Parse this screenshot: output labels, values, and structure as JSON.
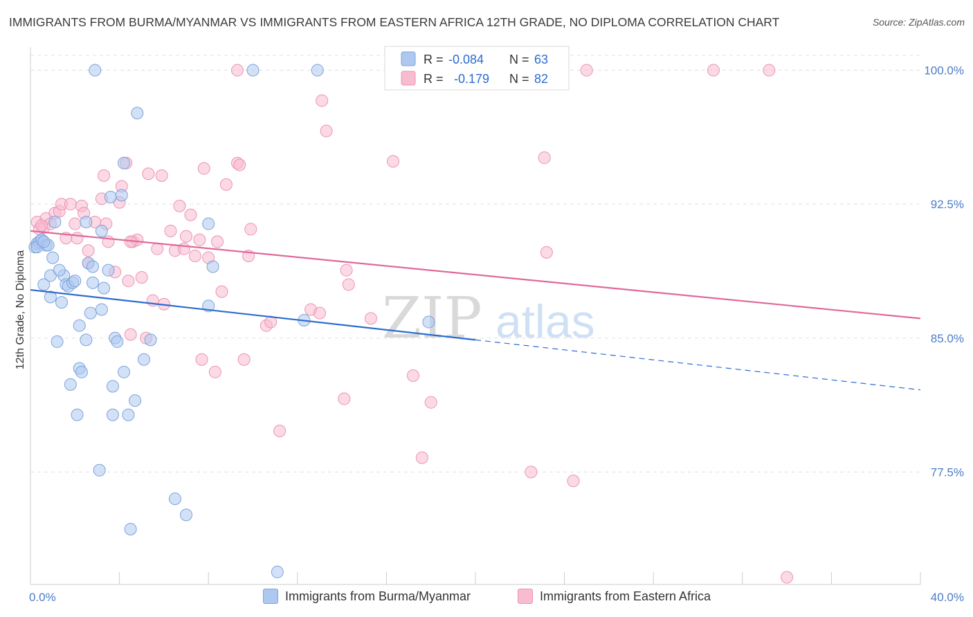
{
  "title": "IMMIGRANTS FROM BURMA/MYANMAR VS IMMIGRANTS FROM EASTERN AFRICA 12TH GRADE, NO DIPLOMA CORRELATION CHART",
  "source": "Source: ZipAtlas.com",
  "watermark": {
    "zip": "ZIP",
    "atlas": "atlas"
  },
  "colors": {
    "blue_fill": "#aec9f0",
    "blue_stroke": "#7aa3dd",
    "blue_line": "#2a6bd1",
    "pink_fill": "#f7bcd0",
    "pink_stroke": "#ec93b2",
    "pink_line": "#e0689a",
    "axis_text": "#4a7cc7",
    "grid": "#e0e0e0"
  },
  "legend": {
    "r_label": "R =",
    "n_label": "N =",
    "blue": {
      "r": "-0.084",
      "n": "63"
    },
    "pink": {
      "r": "-0.179",
      "n": "82"
    }
  },
  "chart_data": {
    "type": "scatter",
    "title": "IMMIGRANTS FROM BURMA/MYANMAR VS IMMIGRANTS FROM EASTERN AFRICA 12TH GRADE, NO DIPLOMA CORRELATION CHART",
    "xlabel": "",
    "ylabel": "12th Grade, No Diploma",
    "xlim": [
      0,
      40
    ],
    "ylim": [
      71.2,
      101.3
    ],
    "x_tick_labels": [
      "0.0%",
      "40.0%"
    ],
    "y_ticks": [
      77.5,
      85.0,
      92.5,
      100.0
    ],
    "y_tick_labels": [
      "77.5%",
      "85.0%",
      "92.5%",
      "100.0%"
    ],
    "grid": true,
    "series": [
      {
        "name": "Immigrants from Burma/Myanmar",
        "color": "#aec9f0",
        "trend": {
          "x": [
            0,
            20
          ],
          "y": [
            87.7,
            84.9
          ],
          "dashed_to": [
            40,
            82.1
          ]
        },
        "points": [
          [
            0.2,
            90.1
          ],
          [
            0.3,
            90.3
          ],
          [
            0.4,
            90.4
          ],
          [
            0.5,
            90.5
          ],
          [
            0.7,
            90.2
          ],
          [
            0.6,
            88.0
          ],
          [
            0.9,
            88.5
          ],
          [
            0.9,
            87.3
          ],
          [
            1.0,
            89.5
          ],
          [
            1.1,
            91.5
          ],
          [
            1.4,
            87.0
          ],
          [
            1.5,
            88.5
          ],
          [
            1.6,
            88.0
          ],
          [
            1.7,
            87.9
          ],
          [
            1.9,
            88.1
          ],
          [
            1.2,
            84.8
          ],
          [
            2.2,
            85.7
          ],
          [
            2.5,
            84.9
          ],
          [
            2.2,
            83.3
          ],
          [
            2.3,
            83.1
          ],
          [
            1.8,
            82.4
          ],
          [
            2.1,
            80.7
          ],
          [
            2.5,
            91.5
          ],
          [
            2.6,
            89.2
          ],
          [
            2.8,
            89.0
          ],
          [
            2.8,
            88.1
          ],
          [
            3.3,
            87.8
          ],
          [
            2.7,
            86.4
          ],
          [
            3.2,
            86.6
          ],
          [
            3.6,
            92.9
          ],
          [
            3.2,
            91.0
          ],
          [
            4.1,
            93.0
          ],
          [
            4.2,
            94.8
          ],
          [
            3.8,
            85.0
          ],
          [
            3.9,
            84.8
          ],
          [
            4.2,
            83.1
          ],
          [
            3.7,
            82.3
          ],
          [
            3.7,
            80.7
          ],
          [
            4.4,
            80.7
          ],
          [
            4.7,
            81.5
          ],
          [
            3.1,
            77.6
          ],
          [
            5.1,
            83.8
          ],
          [
            5.4,
            84.9
          ],
          [
            2.9,
            100.0
          ],
          [
            4.8,
            97.6
          ],
          [
            10.0,
            100.0
          ],
          [
            12.9,
            100.0
          ],
          [
            8.0,
            91.4
          ],
          [
            8.2,
            89.0
          ],
          [
            8.0,
            86.8
          ],
          [
            12.3,
            86.0
          ],
          [
            17.9,
            85.9
          ],
          [
            6.5,
            76.0
          ],
          [
            7.0,
            75.1
          ],
          [
            4.5,
            74.3
          ],
          [
            11.1,
            71.9
          ],
          [
            0.3,
            90.1
          ],
          [
            0.5,
            90.5
          ],
          [
            0.8,
            90.2
          ],
          [
            1.3,
            88.8
          ],
          [
            2.0,
            88.2
          ],
          [
            3.5,
            88.8
          ],
          [
            0.6,
            90.4
          ]
        ]
      },
      {
        "name": "Immigrants from Eastern Africa",
        "color": "#f7bcd0",
        "trend": {
          "x": [
            0,
            40
          ],
          "y": [
            91.0,
            86.1
          ]
        },
        "points": [
          [
            0.3,
            91.5
          ],
          [
            0.4,
            91.1
          ],
          [
            0.6,
            91.2
          ],
          [
            0.7,
            91.7
          ],
          [
            0.9,
            91.4
          ],
          [
            1.1,
            92.0
          ],
          [
            1.3,
            92.1
          ],
          [
            1.4,
            92.5
          ],
          [
            1.6,
            90.6
          ],
          [
            1.8,
            92.5
          ],
          [
            2.0,
            91.4
          ],
          [
            2.1,
            90.6
          ],
          [
            2.3,
            92.4
          ],
          [
            2.4,
            92.0
          ],
          [
            2.6,
            89.9
          ],
          [
            2.6,
            89.2
          ],
          [
            2.9,
            91.5
          ],
          [
            3.2,
            92.8
          ],
          [
            3.3,
            94.1
          ],
          [
            3.4,
            91.4
          ],
          [
            3.5,
            90.4
          ],
          [
            3.8,
            88.7
          ],
          [
            4.0,
            92.6
          ],
          [
            4.1,
            93.5
          ],
          [
            4.3,
            94.8
          ],
          [
            4.4,
            88.2
          ],
          [
            4.5,
            85.2
          ],
          [
            4.6,
            90.4
          ],
          [
            4.8,
            90.5
          ],
          [
            5.0,
            88.4
          ],
          [
            5.3,
            94.2
          ],
          [
            5.5,
            87.1
          ],
          [
            5.7,
            90.0
          ],
          [
            5.9,
            94.1
          ],
          [
            6.0,
            86.9
          ],
          [
            6.3,
            91.0
          ],
          [
            6.5,
            89.9
          ],
          [
            6.7,
            92.4
          ],
          [
            6.9,
            90.0
          ],
          [
            7.0,
            90.7
          ],
          [
            7.2,
            91.9
          ],
          [
            7.4,
            89.6
          ],
          [
            7.6,
            90.5
          ],
          [
            7.8,
            94.5
          ],
          [
            8.0,
            89.5
          ],
          [
            8.3,
            83.1
          ],
          [
            8.4,
            90.4
          ],
          [
            8.6,
            87.6
          ],
          [
            8.8,
            93.6
          ],
          [
            9.3,
            94.8
          ],
          [
            9.4,
            94.7
          ],
          [
            9.6,
            83.8
          ],
          [
            9.8,
            89.6
          ],
          [
            9.9,
            91.1
          ],
          [
            10.6,
            85.7
          ],
          [
            10.8,
            85.9
          ],
          [
            11.2,
            79.8
          ],
          [
            12.6,
            86.6
          ],
          [
            13.1,
            98.3
          ],
          [
            13.0,
            86.4
          ],
          [
            13.3,
            96.6
          ],
          [
            14.1,
            81.6
          ],
          [
            14.2,
            88.8
          ],
          [
            14.3,
            88.0
          ],
          [
            15.3,
            86.1
          ],
          [
            16.3,
            94.9
          ],
          [
            17.2,
            82.9
          ],
          [
            17.6,
            78.3
          ],
          [
            18.0,
            81.4
          ],
          [
            22.5,
            77.5
          ],
          [
            23.1,
            95.1
          ],
          [
            23.2,
            89.8
          ],
          [
            24.4,
            77.0
          ],
          [
            25.0,
            100.0
          ],
          [
            30.7,
            100.0
          ],
          [
            33.2,
            100.0
          ],
          [
            9.3,
            100.0
          ],
          [
            34.0,
            71.6
          ],
          [
            0.5,
            91.3
          ],
          [
            5.2,
            85.0
          ],
          [
            7.7,
            83.8
          ],
          [
            4.5,
            90.4
          ]
        ]
      }
    ]
  },
  "bottom_legend": {
    "blue_label": "Immigrants from Burma/Myanmar",
    "pink_label": "Immigrants from Eastern Africa"
  }
}
